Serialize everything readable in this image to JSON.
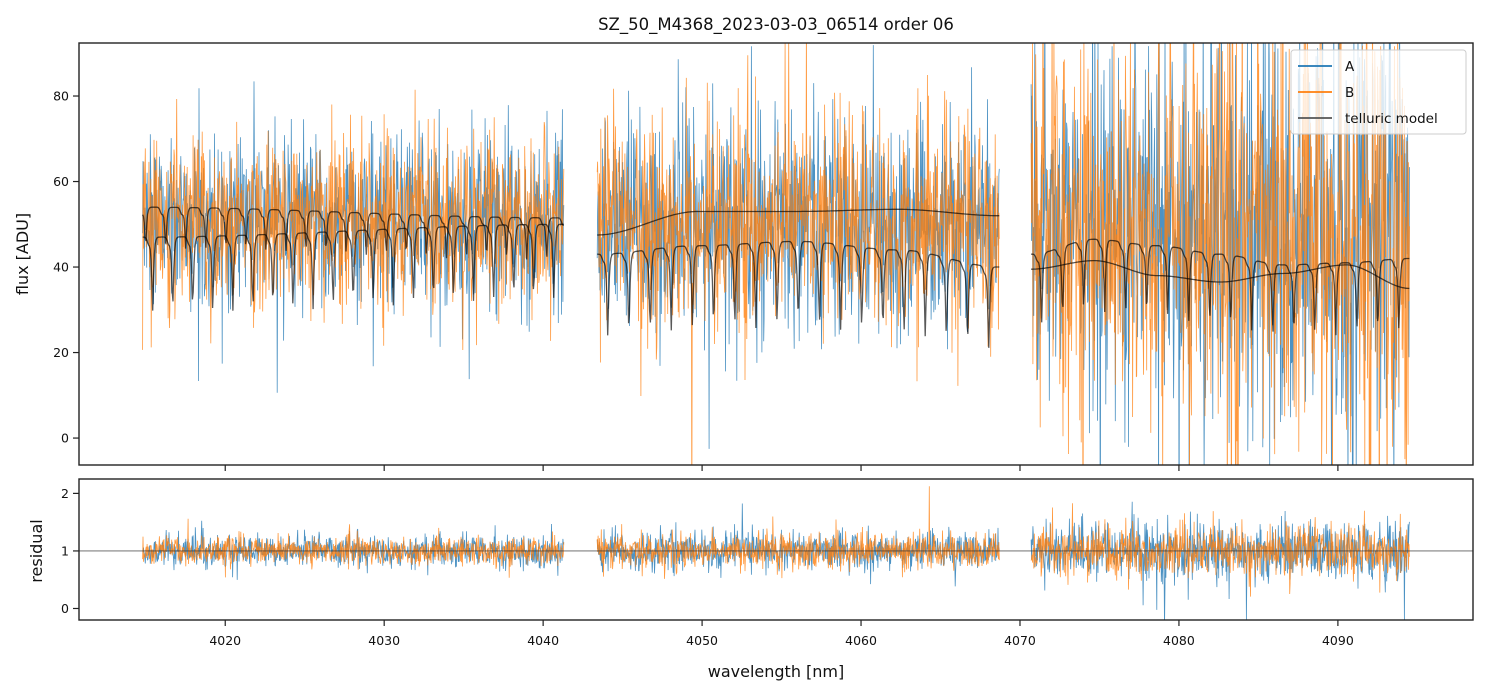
{
  "chart_data": {
    "type": "line",
    "title": "SZ_50_M4368_2023-03-03_06514  order 06",
    "xlabel": "wavelength [nm]",
    "xlim": [
      4010.8,
      4098.5
    ],
    "xticks": [
      4020,
      4030,
      4040,
      4050,
      4060,
      4070,
      4080,
      4090
    ],
    "xtick_labels": [
      "4020",
      "4030",
      "4040",
      "4050",
      "4060",
      "4070",
      "4080",
      "4090"
    ],
    "legend": {
      "placement": "top-right",
      "entries": [
        {
          "label": "A",
          "color": "#1f77b4"
        },
        {
          "label": "B",
          "color": "#ff7f0e"
        },
        {
          "label": "telluric model",
          "color": "#333333"
        }
      ]
    },
    "segments": [
      {
        "x_start": 4014.8,
        "x_end": 4041.3,
        "flux_center": 51,
        "flux_spread": 18,
        "continuum_A": [
          54,
          51.5
        ],
        "continuum_B": [
          47,
          50
        ],
        "dip_count": 21,
        "dip_depth": 18
      },
      {
        "x_start": 4043.4,
        "x_end": 4068.7,
        "flux_center": 50,
        "flux_spread": 22,
        "continuum_A": [
          47.5,
          53,
          53,
          53.5,
          52
        ],
        "continuum_B": [
          43,
          45,
          46,
          44,
          40
        ],
        "dip_count": 19,
        "dip_depth": 20
      },
      {
        "x_start": 4070.7,
        "x_end": 4094.5,
        "flux_center": 48,
        "flux_spread": 35,
        "continuum_A": [
          39.5,
          41.5,
          38,
          36.5,
          38.5,
          40.5,
          35
        ],
        "continuum_B": [
          43,
          46.5,
          45,
          43,
          40.5,
          41,
          42
        ],
        "dip_count": 18,
        "dip_depth": 17
      }
    ],
    "panels": [
      {
        "name": "flux",
        "ylabel": "flux [ADU]",
        "ylim": [
          -6.3,
          92.4
        ],
        "yticks": [
          0,
          20,
          40,
          60,
          80
        ],
        "ytick_labels": [
          "0",
          "20",
          "40",
          "60",
          "80"
        ],
        "series": [
          {
            "name": "A",
            "color": "#1f77b4",
            "description": "noisy spectrum ~ 50 ADU, scatter growing toward red end"
          },
          {
            "name": "B",
            "color": "#ff7f0e",
            "description": "noisy spectrum ~ 50 ADU, overlapping A"
          },
          {
            "name": "telluric model",
            "color": "#333333",
            "description": "two model curves per segment: smooth continuum and comb of absorption dips"
          }
        ]
      },
      {
        "name": "residual",
        "ylabel": "residual",
        "ylim": [
          -0.2,
          2.25
        ],
        "yticks": [
          0,
          1,
          2
        ],
        "ytick_labels": [
          "0",
          "1",
          "2"
        ],
        "reference_line": 1,
        "series": [
          {
            "name": "A",
            "color": "#1f77b4",
            "center": 1.0,
            "spread_by_segment": [
              0.25,
              0.3,
              0.45
            ]
          },
          {
            "name": "B",
            "color": "#ff7f0e",
            "center": 1.0,
            "spread_by_segment": [
              0.22,
              0.27,
              0.4
            ]
          }
        ]
      }
    ]
  }
}
